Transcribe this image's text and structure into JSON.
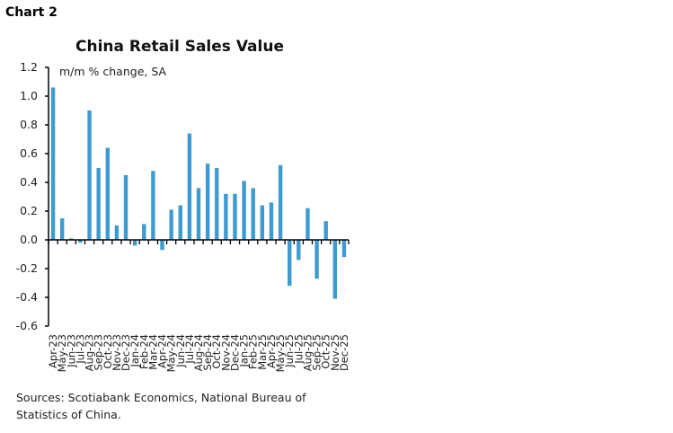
{
  "header": {
    "label": "Chart 2"
  },
  "source": "Sources: Scotiabank Economics, National Bureau of Statistics of China.",
  "chart_data": {
    "type": "bar",
    "title": "China Retail Sales Value",
    "unit_label": "m/m % change, SA",
    "ylim": [
      -0.6,
      1.2
    ],
    "yticks": [
      "1.2",
      "1.0",
      "0.8",
      "0.6",
      "0.4",
      "0.2",
      "0.0",
      "-0.2",
      "-0.4",
      "-0.6"
    ],
    "color": "#3d9bd1",
    "categories": [
      "Apr-23",
      "May-23",
      "Jun-23",
      "Jul-23",
      "Aug-23",
      "Sep-23",
      "Oct-23",
      "Nov-23",
      "Dec-23",
      "Jan-24",
      "Feb-24",
      "Mar-24",
      "Apr-24",
      "May-24",
      "Jun-24",
      "Jul-24",
      "Aug-24",
      "Sep-24",
      "Oct-24",
      "Nov-24",
      "Dec-24",
      "Jan-25",
      "Feb-25",
      "Mar-25",
      "Apr-25",
      "May-25",
      "Jun-25",
      "Jul-25",
      "Aug-25",
      "Sep-25",
      "Oct-25",
      "Nov-25",
      "Dec-25"
    ],
    "values": [
      1.06,
      0.15,
      0.01,
      -0.02,
      0.9,
      0.5,
      0.64,
      0.1,
      0.45,
      -0.04,
      0.11,
      0.48,
      -0.07,
      0.21,
      0.24,
      0.74,
      0.36,
      0.53,
      0.5,
      0.32,
      0.32,
      0.41,
      0.36,
      0.24,
      0.26,
      0.52,
      -0.32,
      -0.14,
      0.22,
      -0.27,
      0.13,
      -0.41,
      -0.12
    ]
  }
}
